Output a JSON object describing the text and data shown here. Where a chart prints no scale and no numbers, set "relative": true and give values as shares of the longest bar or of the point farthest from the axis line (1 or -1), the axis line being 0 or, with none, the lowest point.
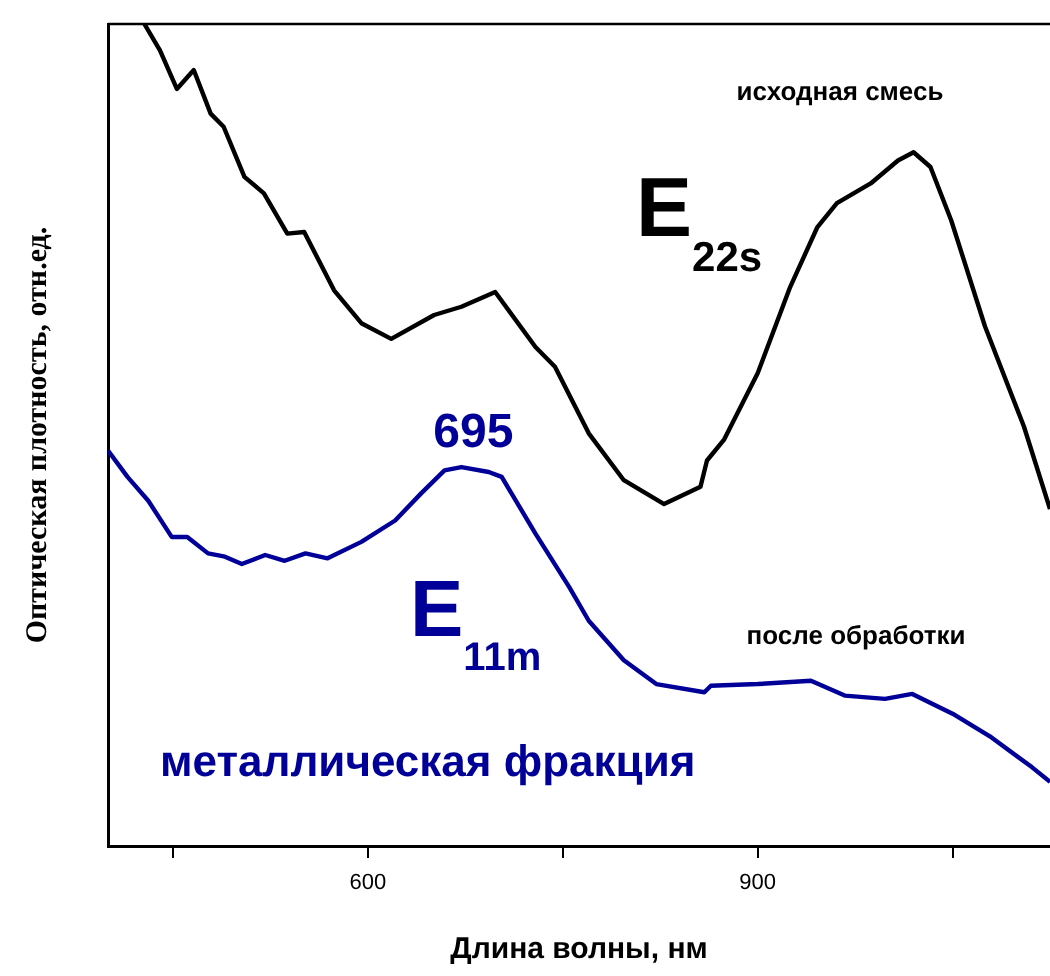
{
  "chart_data": {
    "type": "line",
    "relative": true,
    "xlabel": "Длина волны, нм",
    "ylabel": "Оптическая плотность, отн.ед.",
    "xlim": [
      400,
      1125
    ],
    "xticks": [
      {
        "value": 450,
        "label": null
      },
      600,
      {
        "value": 750,
        "label": null
      },
      900,
      {
        "value": 1050,
        "label": null
      }
    ],
    "grid": false,
    "legend": false,
    "marker": "none",
    "line_style": "solid",
    "series": [
      {
        "name": "исходная смесь",
        "color": "#000000",
        "x": [
          428,
          440,
          453,
          466,
          479,
          489,
          505,
          520,
          538,
          551,
          574,
          595,
          618,
          651,
          672,
          698,
          729,
          744,
          770,
          797,
          828,
          856,
          861,
          874,
          900,
          925,
          946,
          961,
          987,
          1008,
          1020,
          1033,
          1049,
          1075,
          1105,
          1125
        ],
        "values": [
          1.0,
          0.968,
          0.921,
          0.944,
          0.891,
          0.875,
          0.814,
          0.794,
          0.745,
          0.747,
          0.676,
          0.636,
          0.617,
          0.646,
          0.656,
          0.674,
          0.607,
          0.583,
          0.502,
          0.445,
          0.416,
          0.437,
          0.469,
          0.494,
          0.575,
          0.68,
          0.753,
          0.782,
          0.806,
          0.834,
          0.844,
          0.826,
          0.761,
          0.632,
          0.51,
          0.41
        ]
      },
      {
        "name": "после обработки",
        "color": "#000099",
        "x": [
          400,
          415,
          431,
          449,
          461,
          477,
          490,
          503,
          521,
          536,
          552,
          569,
          595,
          621,
          641,
          659,
          672,
          693,
          703,
          729,
          755,
          770,
          797,
          822,
          859,
          864,
          900,
          941,
          967,
          998,
          1019,
          1050,
          1080,
          1111,
          1125
        ],
        "values": [
          0.481,
          0.449,
          0.42,
          0.376,
          0.376,
          0.356,
          0.352,
          0.343,
          0.354,
          0.347,
          0.356,
          0.35,
          0.37,
          0.396,
          0.429,
          0.457,
          0.461,
          0.455,
          0.449,
          0.38,
          0.315,
          0.274,
          0.226,
          0.197,
          0.187,
          0.195,
          0.197,
          0.201,
          0.183,
          0.179,
          0.185,
          0.161,
          0.132,
          0.096,
          0.078
        ]
      }
    ],
    "annotations": [
      "E$_{22s}$",
      {
        "text": "695",
        "x": 672,
        "y": 0.461
      },
      "E$_{11m}$",
      "металлическая фракция"
    ]
  }
}
